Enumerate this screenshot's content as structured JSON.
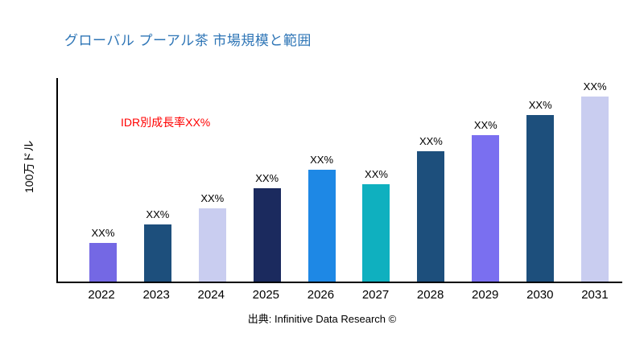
{
  "chart": {
    "title": "グローバル プーアル茶 市場規模と範囲",
    "ylabel": "100万ドル",
    "annotation": "IDR別成長率XX%",
    "source": "出典: Infinitive Data Research ©"
  },
  "colors": {
    "title": "#2e75b6",
    "annotation": "#ff0000",
    "axis": "#000000"
  },
  "chart_data": {
    "type": "bar",
    "title": "グローバル プーアル茶 市場規模と範囲",
    "xlabel": "",
    "ylabel": "100万ドル",
    "categories": [
      "2022",
      "2023",
      "2024",
      "2025",
      "2026",
      "2027",
      "2028",
      "2029",
      "2030",
      "2031"
    ],
    "values": [
      19,
      28,
      36,
      46,
      55,
      48,
      64,
      72,
      82,
      91
    ],
    "value_note": "relative bar heights in % of plot height; y-axis has no numeric tick labels",
    "bar_labels": [
      "XX%",
      "XX%",
      "XX%",
      "XX%",
      "XX%",
      "XX%",
      "XX%",
      "XX%",
      "XX%",
      "XX%"
    ],
    "bar_colors": [
      "#7468e4",
      "#1d4f7c",
      "#c9cdf0",
      "#1b2a5e",
      "#1e88e5",
      "#0fb0bf",
      "#1d4f7c",
      "#7a6ff0",
      "#1d4f7c",
      "#c9cdf0"
    ],
    "legend": false,
    "grid": false,
    "annotation": "IDR別成長率XX%",
    "source": "出典: Infinitive Data Research ©"
  }
}
